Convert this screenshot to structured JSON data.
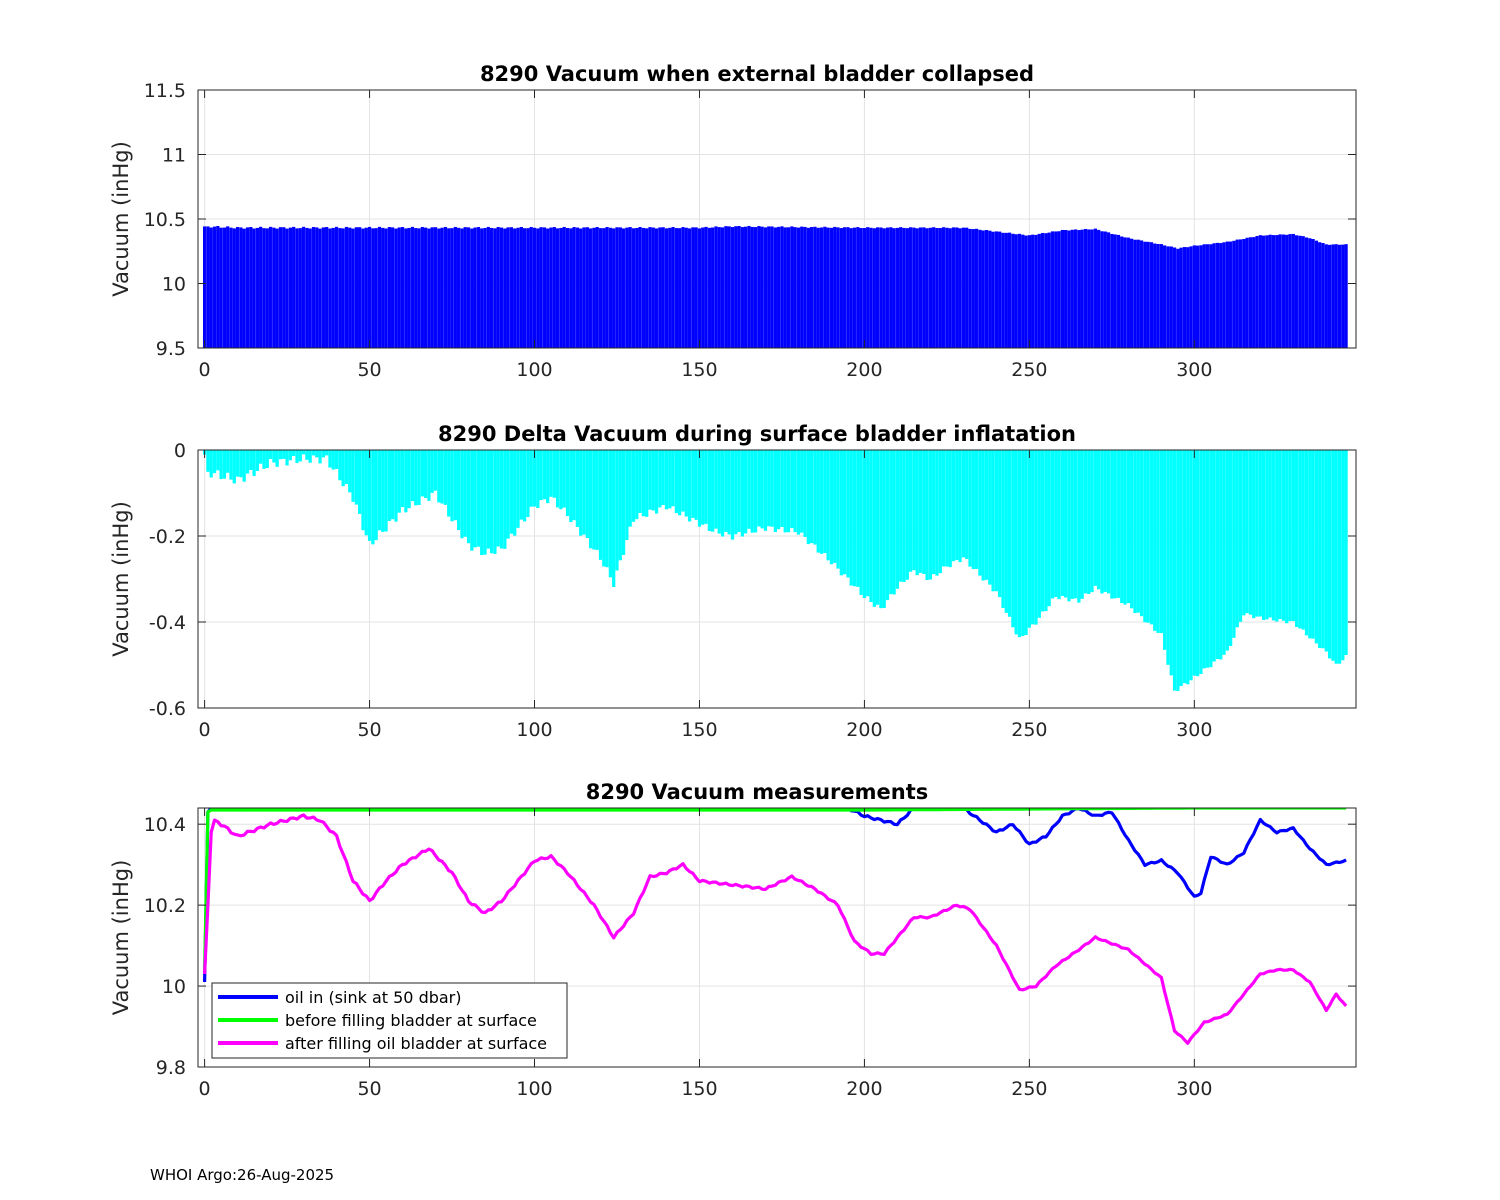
{
  "footer": "WHOI Argo:26-Aug-2025",
  "chart_data": [
    {
      "type": "bar",
      "title": "8290 Vacuum when external bladder collapsed",
      "xlabel": "",
      "ylabel": "Vacuum (inHg)",
      "xlim": [
        -2,
        349
      ],
      "ylim": [
        9.5,
        11.5
      ],
      "xticks": [
        0,
        50,
        100,
        150,
        200,
        250,
        300
      ],
      "yticks": [
        9.5,
        10,
        10.5,
        11,
        11.5
      ],
      "ytick_labels": [
        "9.5",
        "10",
        "10.5",
        "11",
        "11.5"
      ],
      "grid": true,
      "color": "#0000ff",
      "n_points": 347,
      "anchors_x": [
        0,
        1,
        10,
        50,
        100,
        150,
        160,
        200,
        230,
        240,
        250,
        260,
        270,
        280,
        290,
        295,
        300,
        310,
        320,
        330,
        335,
        340,
        346
      ],
      "anchors_y": [
        10.44,
        10.44,
        10.43,
        10.43,
        10.43,
        10.43,
        10.44,
        10.43,
        10.43,
        10.4,
        10.37,
        10.41,
        10.42,
        10.35,
        10.3,
        10.27,
        10.29,
        10.32,
        10.37,
        10.38,
        10.35,
        10.3,
        10.3
      ]
    },
    {
      "type": "bar",
      "title": "8290 Delta Vacuum during surface bladder inflatation",
      "xlabel": "",
      "ylabel": "Vacuum (inHg)",
      "xlim": [
        -2,
        349
      ],
      "ylim": [
        -0.6,
        0
      ],
      "xticks": [
        0,
        50,
        100,
        150,
        200,
        250,
        300
      ],
      "yticks": [
        -0.6,
        -0.4,
        -0.2,
        0
      ],
      "ytick_labels": [
        "-0.6",
        "-0.4",
        "-0.2",
        "0"
      ],
      "grid": true,
      "color": "#00ffff",
      "n_points": 347,
      "anchors_x": [
        0,
        1,
        10,
        20,
        30,
        37,
        45,
        50,
        55,
        60,
        70,
        80,
        85,
        90,
        100,
        105,
        110,
        120,
        124,
        130,
        140,
        145,
        155,
        160,
        170,
        180,
        190,
        200,
        205,
        210,
        215,
        220,
        225,
        230,
        240,
        247,
        252,
        258,
        265,
        270,
        280,
        290,
        294,
        298,
        305,
        310,
        315,
        320,
        330,
        340,
        343,
        346
      ],
      "anchors_y": [
        -0.01,
        -0.05,
        -0.07,
        -0.03,
        -0.02,
        -0.02,
        -0.11,
        -0.22,
        -0.18,
        -0.14,
        -0.1,
        -0.22,
        -0.24,
        -0.23,
        -0.13,
        -0.11,
        -0.15,
        -0.25,
        -0.31,
        -0.16,
        -0.13,
        -0.15,
        -0.19,
        -0.2,
        -0.18,
        -0.19,
        -0.26,
        -0.34,
        -0.37,
        -0.32,
        -0.28,
        -0.3,
        -0.27,
        -0.25,
        -0.33,
        -0.44,
        -0.4,
        -0.34,
        -0.35,
        -0.32,
        -0.36,
        -0.43,
        -0.56,
        -0.54,
        -0.5,
        -0.47,
        -0.38,
        -0.39,
        -0.4,
        -0.47,
        -0.5,
        -0.48
      ]
    },
    {
      "type": "line",
      "title": "8290 Vacuum measurements",
      "xlabel": "",
      "ylabel": "Vacuum (inHg)",
      "xlim": [
        -2,
        349
      ],
      "ylim": [
        9.8,
        10.44
      ],
      "xticks": [
        0,
        50,
        100,
        150,
        200,
        250,
        300
      ],
      "yticks": [
        9.8,
        10,
        10.2,
        10.4
      ],
      "ytick_labels": [
        "9.8",
        "10",
        "10.2",
        "10.4"
      ],
      "grid": true,
      "legend_position": "bottom-left",
      "series": [
        {
          "name": "oil in (sink at 50 dbar)",
          "color": "#0000ff",
          "x": [
            0,
            1,
            2,
            10,
            50,
            100,
            150,
            195,
            200,
            205,
            210,
            215,
            220,
            230,
            235,
            240,
            245,
            250,
            255,
            260,
            265,
            270,
            275,
            280,
            285,
            290,
            295,
            300,
            302,
            305,
            310,
            315,
            320,
            325,
            330,
            335,
            340,
            346
          ],
          "y": [
            10.01,
            10.43,
            10.44,
            10.44,
            10.44,
            10.44,
            10.44,
            10.44,
            10.42,
            10.41,
            10.4,
            10.44,
            10.44,
            10.44,
            10.41,
            10.38,
            10.4,
            10.35,
            10.37,
            10.42,
            10.44,
            10.42,
            10.43,
            10.36,
            10.3,
            10.31,
            10.28,
            10.22,
            10.23,
            10.32,
            10.3,
            10.33,
            10.41,
            10.38,
            10.39,
            10.34,
            10.3,
            10.31
          ]
        },
        {
          "name": "before filling bladder at surface",
          "color": "#00ff00",
          "x": [
            0,
            1,
            2,
            100,
            200,
            300,
            346
          ],
          "y": [
            10.04,
            10.43,
            10.435,
            10.435,
            10.435,
            10.44,
            10.44
          ]
        },
        {
          "name": "after filling oil bladder at surface",
          "color": "#ff00ff",
          "x": [
            0,
            1,
            2,
            3,
            5,
            10,
            20,
            30,
            35,
            40,
            45,
            50,
            55,
            60,
            68,
            75,
            80,
            85,
            90,
            95,
            100,
            105,
            110,
            118,
            124,
            130,
            135,
            140,
            145,
            150,
            160,
            170,
            178,
            185,
            192,
            197,
            202,
            206,
            210,
            215,
            220,
            228,
            232,
            240,
            247,
            252,
            258,
            265,
            270,
            280,
            290,
            294,
            298,
            303,
            310,
            315,
            320,
            325,
            330,
            335,
            340,
            343,
            346
          ],
          "y": [
            10.03,
            10.2,
            10.38,
            10.41,
            10.4,
            10.37,
            10.4,
            10.42,
            10.41,
            10.37,
            10.26,
            10.21,
            10.26,
            10.3,
            10.34,
            10.28,
            10.21,
            10.18,
            10.21,
            10.26,
            10.31,
            10.32,
            10.28,
            10.2,
            10.12,
            10.18,
            10.27,
            10.28,
            10.3,
            10.26,
            10.25,
            10.24,
            10.27,
            10.24,
            10.2,
            10.11,
            10.08,
            10.08,
            10.12,
            10.17,
            10.17,
            10.2,
            10.19,
            10.1,
            9.99,
            10.0,
            10.05,
            10.09,
            10.12,
            10.09,
            10.02,
            9.89,
            9.86,
            9.91,
            9.93,
            9.98,
            10.03,
            10.04,
            10.04,
            10.01,
            9.94,
            9.98,
            9.95
          ]
        }
      ]
    }
  ]
}
